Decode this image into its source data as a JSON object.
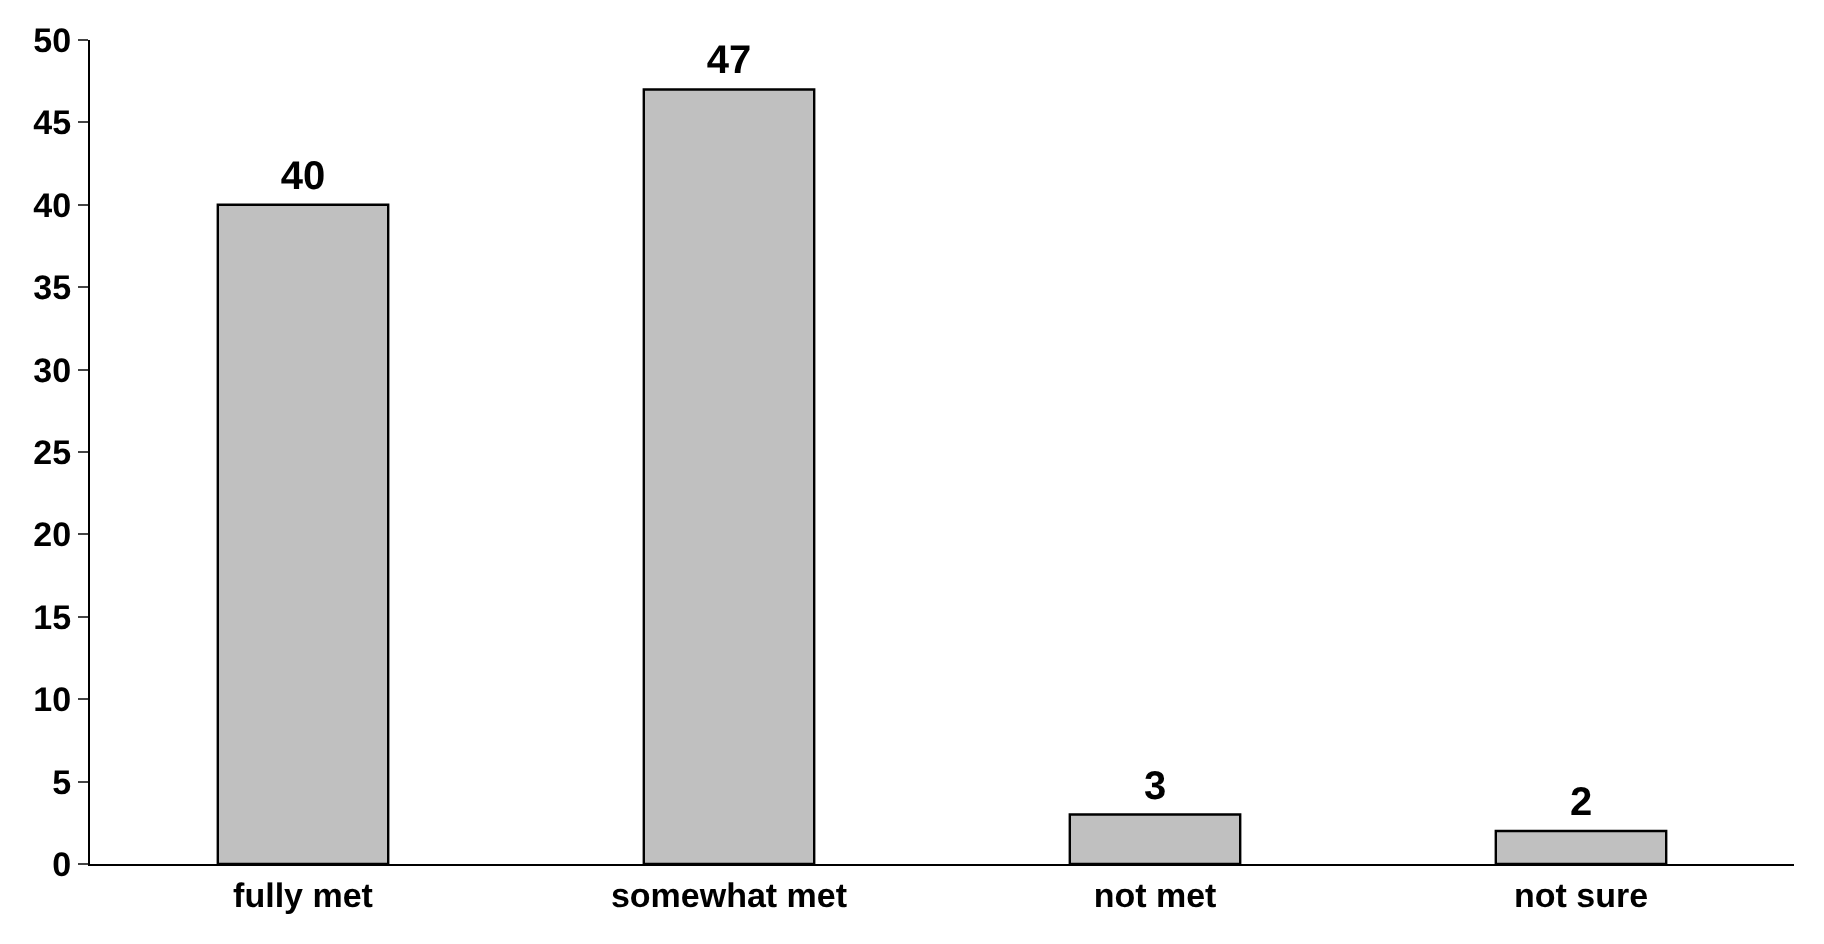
{
  "chart_data": {
    "type": "bar",
    "categories": [
      "fully met",
      "somewhat met",
      "not met",
      "not sure"
    ],
    "values": [
      40,
      47,
      3,
      2
    ],
    "color": "#c0c0c0",
    "ylim": [
      0,
      50
    ],
    "yticks": [
      0,
      5,
      10,
      15,
      20,
      25,
      30,
      35,
      40,
      45,
      50
    ],
    "data_labels": true
  }
}
